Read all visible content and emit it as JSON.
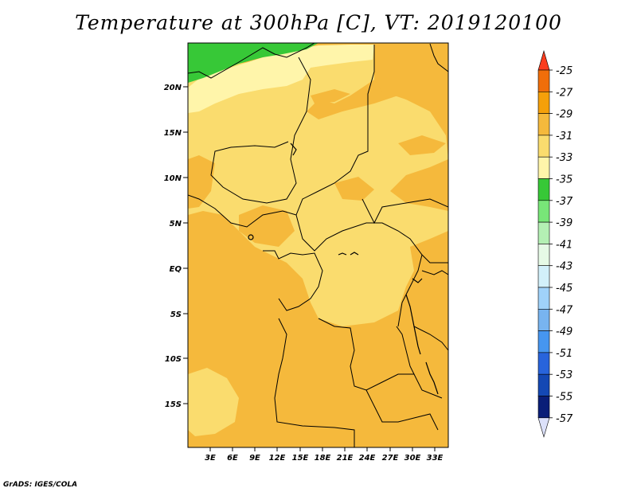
{
  "title": "Temperature at 300hPa [C], VT: 2019120100",
  "credit": "GrADS: IGES/COLA",
  "lat_labels": [
    "20N",
    "15N",
    "10N",
    "5N",
    "EQ",
    "5S",
    "10S",
    "15S"
  ],
  "lon_labels": [
    "3E",
    "6E",
    "9E",
    "12E",
    "15E",
    "18E",
    "21E",
    "24E",
    "27E",
    "30E",
    "33E"
  ],
  "colorbar": {
    "labels": [
      "-25",
      "-27",
      "-29",
      "-31",
      "-33",
      "-35",
      "-37",
      "-39",
      "-41",
      "-43",
      "-45",
      "-47",
      "-49",
      "-51",
      "-53",
      "-55",
      "-57"
    ],
    "colors": [
      "#fa3c1e",
      "#f06e0a",
      "#f5a00a",
      "#f5b93c",
      "#fadc6e",
      "#fff5aa",
      "#37c837",
      "#78e678",
      "#b4f0b4",
      "#e6fae6",
      "#d2f0fa",
      "#a0d2fa",
      "#78b4f0",
      "#4696f0",
      "#2864dc",
      "#1448b4",
      "#0a1e78",
      "#dce1fa"
    ]
  },
  "legend_colors": {
    "green": "#37c837",
    "pale_yellow": "#fff5aa",
    "light_orange": "#fadc6e",
    "orange": "#f5b93c"
  }
}
